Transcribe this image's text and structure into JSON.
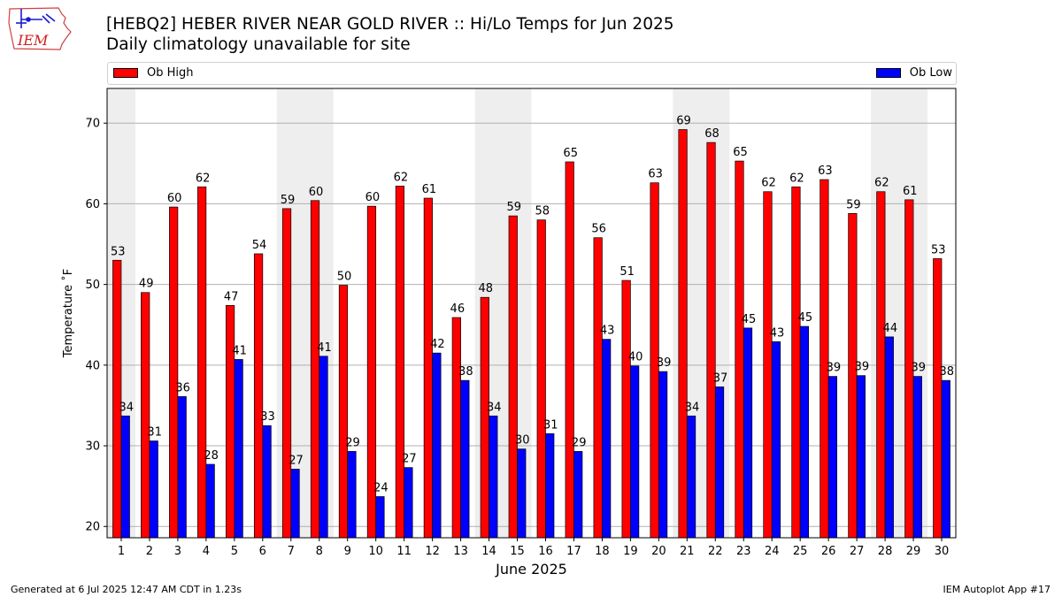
{
  "header": {
    "title": "[HEBQ2] HEBER RIVER NEAR GOLD RIVER :: Hi/Lo Temps for Jun 2025",
    "subtitle": "Daily climatology unavailable for site",
    "logo_text": "IEM"
  },
  "legend": {
    "high_label": "Ob High",
    "low_label": "Ob Low"
  },
  "footer": {
    "left": "Generated at 6 Jul 2025 12:47 AM CDT in 1.23s",
    "right": "IEM Autoplot App #17"
  },
  "colors": {
    "high": "#ff0000",
    "low": "#0000ff",
    "weekend_shade": "#eeeeee",
    "grid": "#b0b0b0"
  },
  "chart_data": {
    "type": "bar",
    "xlabel": "June 2025",
    "ylabel": "Temperature ˚F",
    "ylim": [
      18.6,
      74.3
    ],
    "yticks": [
      20,
      30,
      40,
      50,
      60,
      70
    ],
    "grid": "horizontal",
    "legend_position": "top",
    "categories": [
      "1",
      "2",
      "3",
      "4",
      "5",
      "6",
      "7",
      "8",
      "9",
      "10",
      "11",
      "12",
      "13",
      "14",
      "15",
      "16",
      "17",
      "18",
      "19",
      "20",
      "21",
      "22",
      "23",
      "24",
      "25",
      "26",
      "27",
      "28",
      "29",
      "30"
    ],
    "shaded_days": [
      [
        1,
        1
      ],
      [
        7,
        8
      ],
      [
        14,
        15
      ],
      [
        21,
        22
      ],
      [
        28,
        29
      ]
    ],
    "series": [
      {
        "name": "Ob High",
        "values": [
          53.0,
          49.0,
          59.6,
          62.1,
          47.4,
          53.8,
          59.4,
          60.4,
          49.9,
          59.7,
          62.2,
          60.7,
          45.9,
          48.4,
          58.5,
          58.0,
          65.2,
          55.8,
          50.5,
          62.6,
          69.2,
          67.6,
          65.3,
          61.5,
          62.1,
          63.0,
          58.8,
          61.5,
          60.5,
          53.2
        ],
        "labels": [
          "53",
          "49",
          "60",
          "62",
          "47",
          "54",
          "59",
          "60",
          "50",
          "60",
          "62",
          "61",
          "46",
          "48",
          "59",
          "58",
          "65",
          "56",
          "51",
          "63",
          "69",
          "68",
          "65",
          "62",
          "62",
          "63",
          "59",
          "62",
          "61",
          "53"
        ]
      },
      {
        "name": "Ob Low",
        "values": [
          33.7,
          30.6,
          36.1,
          27.7,
          40.7,
          32.5,
          27.1,
          41.1,
          29.3,
          23.7,
          27.3,
          41.5,
          38.1,
          33.7,
          29.6,
          31.5,
          29.3,
          43.2,
          39.9,
          39.2,
          33.7,
          37.3,
          44.6,
          42.9,
          44.8,
          38.6,
          38.7,
          43.5,
          38.6,
          38.1
        ],
        "labels": [
          "34",
          "31",
          "36",
          "28",
          "41",
          "33",
          "27",
          "41",
          "29",
          "24",
          "27",
          "42",
          "38",
          "34",
          "30",
          "31",
          "29",
          "43",
          "40",
          "39",
          "34",
          "37",
          "45",
          "43",
          "45",
          "39",
          "39",
          "44",
          "39",
          "38"
        ]
      }
    ]
  }
}
